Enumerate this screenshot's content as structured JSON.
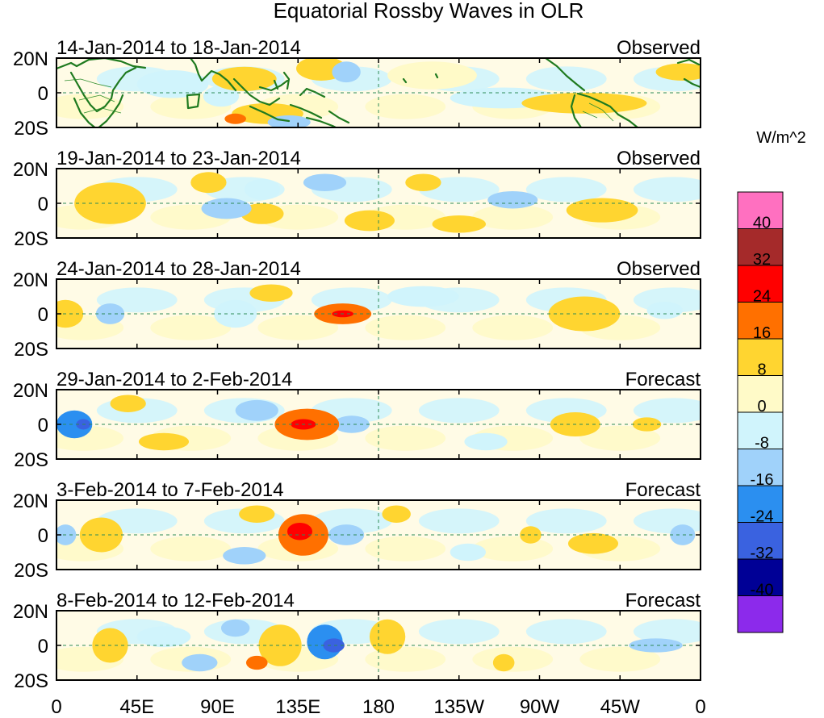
{
  "title": "Equatorial Rossby Waves in OLR",
  "unit": "W/m^2",
  "lat_labels": [
    "20N",
    "0",
    "20S"
  ],
  "lon_labels": [
    "0",
    "45E",
    "90E",
    "135E",
    "180",
    "135W",
    "90W",
    "45W",
    "0"
  ],
  "colorbar": {
    "colors": [
      "#ff70c0",
      "#a52a2a",
      "#ff0000",
      "#ff7000",
      "#ffd530",
      "#fffac8",
      "#d0f4fc",
      "#a0d2fa",
      "#2b8ff0",
      "#3a62e0",
      "#000096",
      "#8c2aeb"
    ],
    "labels": [
      "40",
      "32",
      "24",
      "16",
      "8",
      "0",
      "-8",
      "-16",
      "-24",
      "-32",
      "-40"
    ]
  },
  "panels": [
    {
      "period": "14-Jan-2014 to 18-Jan-2014",
      "status": "Observed"
    },
    {
      "period": "19-Jan-2014 to 23-Jan-2014",
      "status": "Observed"
    },
    {
      "period": "24-Jan-2014 to 28-Jan-2014",
      "status": "Observed"
    },
    {
      "period": "29-Jan-2014 to 2-Feb-2014",
      "status": "Forecast"
    },
    {
      "period": "3-Feb-2014 to 7-Feb-2014",
      "status": "Forecast"
    },
    {
      "period": "8-Feb-2014 to 12-Feb-2014",
      "status": "Forecast"
    }
  ],
  "anomalies": [
    [
      {
        "lon": 105,
        "lat": 8,
        "value": 10,
        "rx": 18,
        "ry": 7
      },
      {
        "lon": 118,
        "lat": -12,
        "value": 14,
        "rx": 20,
        "ry": 6
      },
      {
        "lon": 100,
        "lat": -15,
        "value": 22,
        "rx": 6,
        "ry": 3
      },
      {
        "lon": 148,
        "lat": 14,
        "value": 9,
        "rx": 14,
        "ry": 7
      },
      {
        "lon": 162,
        "lat": 12,
        "value": -10,
        "rx": 8,
        "ry": 6
      },
      {
        "lon": 130,
        "lat": -17,
        "value": -14,
        "rx": 12,
        "ry": 4
      },
      {
        "lon": 65,
        "lat": 5,
        "value": -7,
        "rx": 20,
        "ry": 8
      },
      {
        "lon": 92,
        "lat": -2,
        "value": -7,
        "rx": 10,
        "ry": 6
      },
      {
        "lon": 250,
        "lat": -3,
        "value": -8,
        "rx": 30,
        "ry": 6
      },
      {
        "lon": 295,
        "lat": -6,
        "value": 12,
        "rx": 35,
        "ry": 6
      },
      {
        "lon": 350,
        "lat": 12,
        "value": 9,
        "rx": 15,
        "ry": 5
      },
      {
        "lon": 210,
        "lat": 10,
        "value": 5,
        "rx": 25,
        "ry": 8
      }
    ],
    [
      {
        "lon": 95,
        "lat": -3,
        "value": -10,
        "rx": 14,
        "ry": 6
      },
      {
        "lon": 115,
        "lat": 8,
        "value": -8,
        "rx": 10,
        "ry": 6
      },
      {
        "lon": 115,
        "lat": -6,
        "value": 9,
        "rx": 12,
        "ry": 6
      },
      {
        "lon": 175,
        "lat": -10,
        "value": 9,
        "rx": 14,
        "ry": 6
      },
      {
        "lon": 205,
        "lat": 12,
        "value": 9,
        "rx": 10,
        "ry": 5
      },
      {
        "lon": 225,
        "lat": -12,
        "value": 10,
        "rx": 15,
        "ry": 5
      },
      {
        "lon": 255,
        "lat": 2,
        "value": -9,
        "rx": 14,
        "ry": 5
      },
      {
        "lon": 305,
        "lat": -4,
        "value": 12,
        "rx": 20,
        "ry": 7
      },
      {
        "lon": 30,
        "lat": 0,
        "value": 8,
        "rx": 20,
        "ry": 12
      },
      {
        "lon": 150,
        "lat": 12,
        "value": -9,
        "rx": 12,
        "ry": 5
      },
      {
        "lon": 85,
        "lat": 12,
        "value": 8,
        "rx": 10,
        "ry": 6
      }
    ],
    [
      {
        "lon": 160,
        "lat": 0,
        "value": 18,
        "rx": 16,
        "ry": 6
      },
      {
        "lon": 160,
        "lat": 0,
        "value": 26,
        "rx": 6,
        "ry": 2
      },
      {
        "lon": 30,
        "lat": 0,
        "value": -12,
        "rx": 8,
        "ry": 6
      },
      {
        "lon": 100,
        "lat": 0,
        "value": -6,
        "rx": 12,
        "ry": 8
      },
      {
        "lon": 295,
        "lat": 0,
        "value": 10,
        "rx": 20,
        "ry": 10
      },
      {
        "lon": 120,
        "lat": 12,
        "value": 8,
        "rx": 12,
        "ry": 5
      },
      {
        "lon": 205,
        "lat": 10,
        "value": -7,
        "rx": 20,
        "ry": 6
      },
      {
        "lon": 340,
        "lat": 2,
        "value": -8,
        "rx": 10,
        "ry": 5
      },
      {
        "lon": 5,
        "lat": 0,
        "value": 8,
        "rx": 10,
        "ry": 8
      }
    ],
    [
      {
        "lon": 140,
        "lat": 0,
        "value": 18,
        "rx": 18,
        "ry": 9
      },
      {
        "lon": 138,
        "lat": 0,
        "value": 28,
        "rx": 7,
        "ry": 3
      },
      {
        "lon": 10,
        "lat": 0,
        "value": -18,
        "rx": 10,
        "ry": 8
      },
      {
        "lon": 15,
        "lat": 0,
        "value": -28,
        "rx": 4,
        "ry": 3
      },
      {
        "lon": 60,
        "lat": -10,
        "value": 10,
        "rx": 14,
        "ry": 5
      },
      {
        "lon": 112,
        "lat": 8,
        "value": -9,
        "rx": 12,
        "ry": 6
      },
      {
        "lon": 165,
        "lat": 0,
        "value": -9,
        "rx": 10,
        "ry": 5
      },
      {
        "lon": 290,
        "lat": 0,
        "value": 11,
        "rx": 14,
        "ry": 7
      },
      {
        "lon": 330,
        "lat": 0,
        "value": 10,
        "rx": 8,
        "ry": 4
      },
      {
        "lon": 240,
        "lat": -10,
        "value": -7,
        "rx": 12,
        "ry": 5
      },
      {
        "lon": 40,
        "lat": 12,
        "value": 8,
        "rx": 10,
        "ry": 5
      }
    ],
    [
      {
        "lon": 138,
        "lat": 0,
        "value": 20,
        "rx": 14,
        "ry": 12
      },
      {
        "lon": 136,
        "lat": 2,
        "value": 30,
        "rx": 7,
        "ry": 5
      },
      {
        "lon": 162,
        "lat": 0,
        "value": -14,
        "rx": 10,
        "ry": 6
      },
      {
        "lon": 5,
        "lat": 0,
        "value": -14,
        "rx": 6,
        "ry": 6
      },
      {
        "lon": 350,
        "lat": 0,
        "value": -14,
        "rx": 7,
        "ry": 6
      },
      {
        "lon": 25,
        "lat": 0,
        "value": 12,
        "rx": 12,
        "ry": 10
      },
      {
        "lon": 105,
        "lat": -12,
        "value": -10,
        "rx": 12,
        "ry": 5
      },
      {
        "lon": 112,
        "lat": 12,
        "value": 9,
        "rx": 10,
        "ry": 5
      },
      {
        "lon": 190,
        "lat": 12,
        "value": 9,
        "rx": 8,
        "ry": 5
      },
      {
        "lon": 265,
        "lat": 0,
        "value": 10,
        "rx": 6,
        "ry": 5
      },
      {
        "lon": 300,
        "lat": -5,
        "value": 8,
        "rx": 14,
        "ry": 6
      },
      {
        "lon": 230,
        "lat": -10,
        "value": -8,
        "rx": 10,
        "ry": 5
      }
    ],
    [
      {
        "lon": 150,
        "lat": 2,
        "value": -18,
        "rx": 10,
        "ry": 10
      },
      {
        "lon": 155,
        "lat": 0,
        "value": -28,
        "rx": 6,
        "ry": 4
      },
      {
        "lon": 125,
        "lat": 0,
        "value": 12,
        "rx": 12,
        "ry": 12
      },
      {
        "lon": 112,
        "lat": -10,
        "value": 18,
        "rx": 6,
        "ry": 4
      },
      {
        "lon": 80,
        "lat": -10,
        "value": -12,
        "rx": 10,
        "ry": 5
      },
      {
        "lon": 100,
        "lat": 10,
        "value": -9,
        "rx": 8,
        "ry": 5
      },
      {
        "lon": 185,
        "lat": 5,
        "value": 9,
        "rx": 10,
        "ry": 10
      },
      {
        "lon": 30,
        "lat": 0,
        "value": 9,
        "rx": 10,
        "ry": 10
      },
      {
        "lon": 335,
        "lat": 0,
        "value": -16,
        "rx": 15,
        "ry": 4
      },
      {
        "lon": 250,
        "lat": -10,
        "value": 10,
        "rx": 6,
        "ry": 5
      },
      {
        "lon": 60,
        "lat": 5,
        "value": -7,
        "rx": 15,
        "ry": 6
      }
    ]
  ]
}
